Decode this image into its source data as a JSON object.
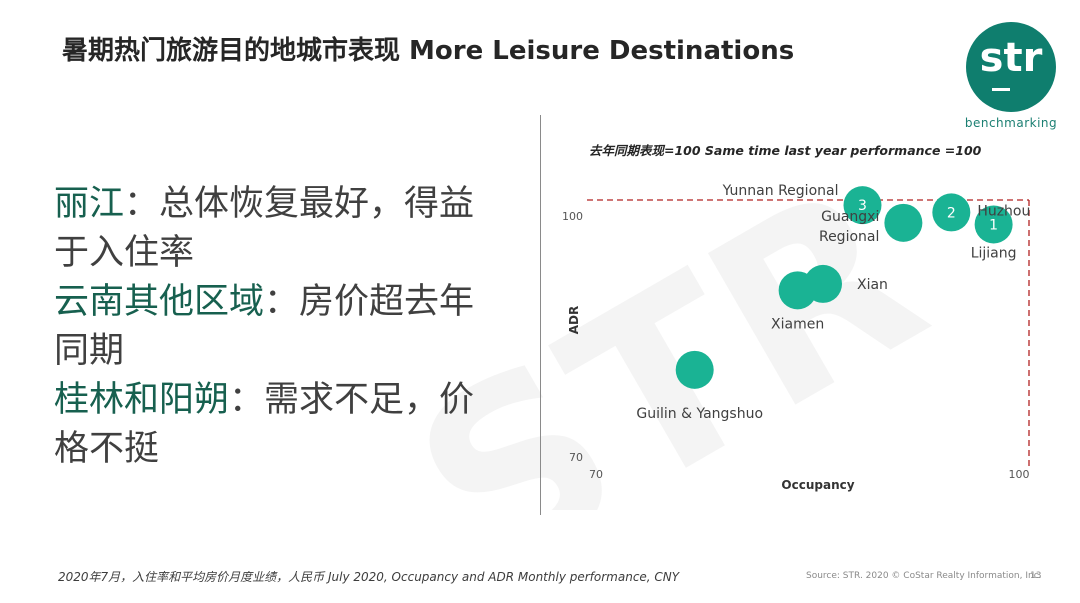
{
  "title": "暑期热门旅游目的地城市表现 More Leisure Destinations",
  "logo": {
    "text": "str",
    "subtitle": "benchmarking",
    "color": "#0f7e6e"
  },
  "bullets": [
    {
      "highlight": "丽江",
      "text": "：总体恢复最好，得益于入住率"
    },
    {
      "highlight": "云南其他区域",
      "text": "：房价超去年同期"
    },
    {
      "highlight": "桂林和阳朔",
      "text": "：需求不足，价格不挺"
    }
  ],
  "watermark": "STR",
  "chart_data": {
    "type": "scatter",
    "subtitle": "去年同期表现=100   Same time last year performance =100",
    "xlabel": "Occupancy",
    "ylabel": "ADR",
    "xlim": [
      70,
      100
    ],
    "ylim": [
      70,
      100
    ],
    "x_ticks": [
      "70",
      "100"
    ],
    "y_ticks": [
      "70",
      "100"
    ],
    "reference_line": 100,
    "marker_color": "#1ab394",
    "points": [
      {
        "label": "Lijiang",
        "rank": "1",
        "x": 98.2,
        "y": 98.7
      },
      {
        "label": "Huzhou",
        "rank": "2",
        "x": 95.2,
        "y": 100.2
      },
      {
        "label": "Yunnan Regional",
        "rank": "3",
        "x": 88.9,
        "y": 101.1
      },
      {
        "label": "Guangxi\nRegional",
        "rank": "",
        "x": 91.8,
        "y": 98.9
      },
      {
        "label": "Xian",
        "rank": "",
        "x": 86.1,
        "y": 91.3
      },
      {
        "label": "Xiamen",
        "rank": "",
        "x": 84.3,
        "y": 90.5
      },
      {
        "label": "Guilin & Yangshuo",
        "rank": "",
        "x": 77.0,
        "y": 80.6
      }
    ]
  },
  "footer": {
    "left": "2020年7月，入住率和平均房价月度业绩，人民币 July 2020, Occupancy and ADR Monthly performance, CNY",
    "right": "Source: STR. 2020 © CoStar Realty Information, Inc.",
    "page": "13"
  }
}
